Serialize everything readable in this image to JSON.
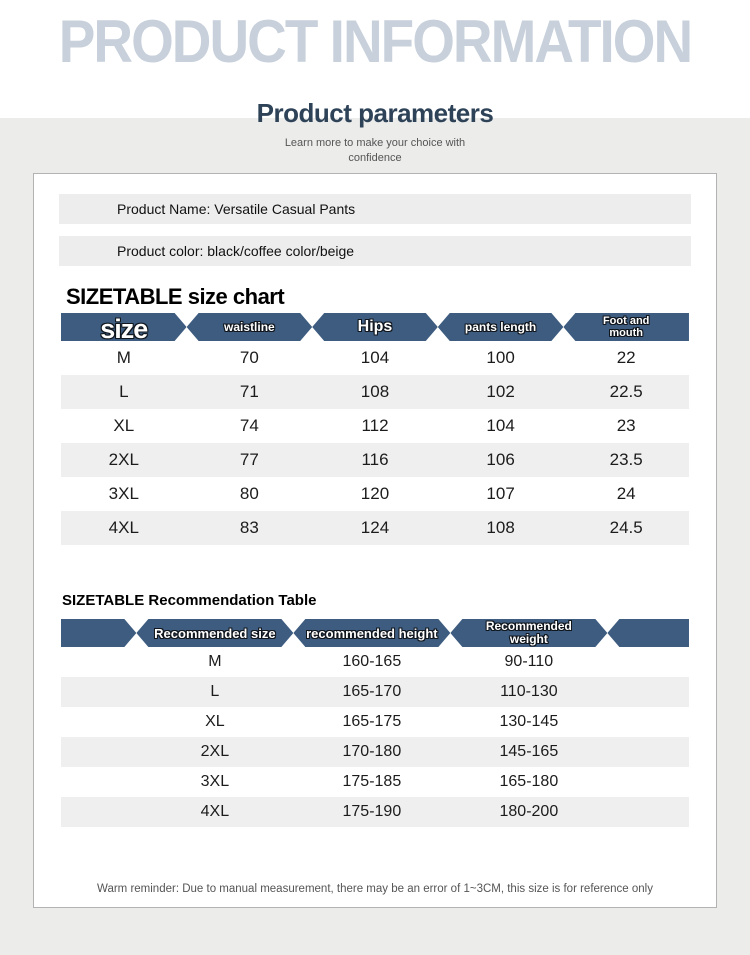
{
  "page": {
    "watermark_title": "PRODUCT INFORMATION",
    "section_title": "Product parameters",
    "section_subtitle_line1": "Learn more to make your choice with",
    "section_subtitle_line2": "confidence"
  },
  "product": {
    "name_label": "Product Name: Versatile Casual Pants",
    "color_label": "Product color: black/coffee color/beige"
  },
  "size_chart": {
    "title": "SIZETABLE size chart",
    "columns": [
      "size",
      "waistline",
      "Hips",
      "pants length",
      "Foot and mouth"
    ],
    "rows": [
      [
        "M",
        "70",
        "104",
        "100",
        "22"
      ],
      [
        "L",
        "71",
        "108",
        "102",
        "22.5"
      ],
      [
        "XL",
        "74",
        "112",
        "104",
        "23"
      ],
      [
        "2XL",
        "77",
        "116",
        "106",
        "23.5"
      ],
      [
        "3XL",
        "80",
        "120",
        "107",
        "24"
      ],
      [
        "4XL",
        "83",
        "124",
        "108",
        "24.5"
      ]
    ]
  },
  "recommendation_table": {
    "title": "SIZETABLE Recommendation Table",
    "columns": [
      "Recommended size",
      "recommended height",
      "Recommended weight"
    ],
    "rows": [
      [
        "M",
        "160-165",
        "90-110"
      ],
      [
        "L",
        "165-170",
        "110-130"
      ],
      [
        "XL",
        "165-175",
        "130-145"
      ],
      [
        "2XL",
        "170-180",
        "145-165"
      ],
      [
        "3XL",
        "175-185",
        "165-180"
      ],
      [
        "4XL",
        "175-190",
        "180-200"
      ]
    ]
  },
  "footer": {
    "reminder": "Warm reminder: Due to manual measurement, there may be an error of 1~3CM, this size is for reference only"
  },
  "colors": {
    "header_bar": "#3d5c80",
    "heading_navy": "#2e4358",
    "watermark_gray": "#c7d0db",
    "row_alt": "#efefef",
    "page_gray": "#ececeb"
  }
}
